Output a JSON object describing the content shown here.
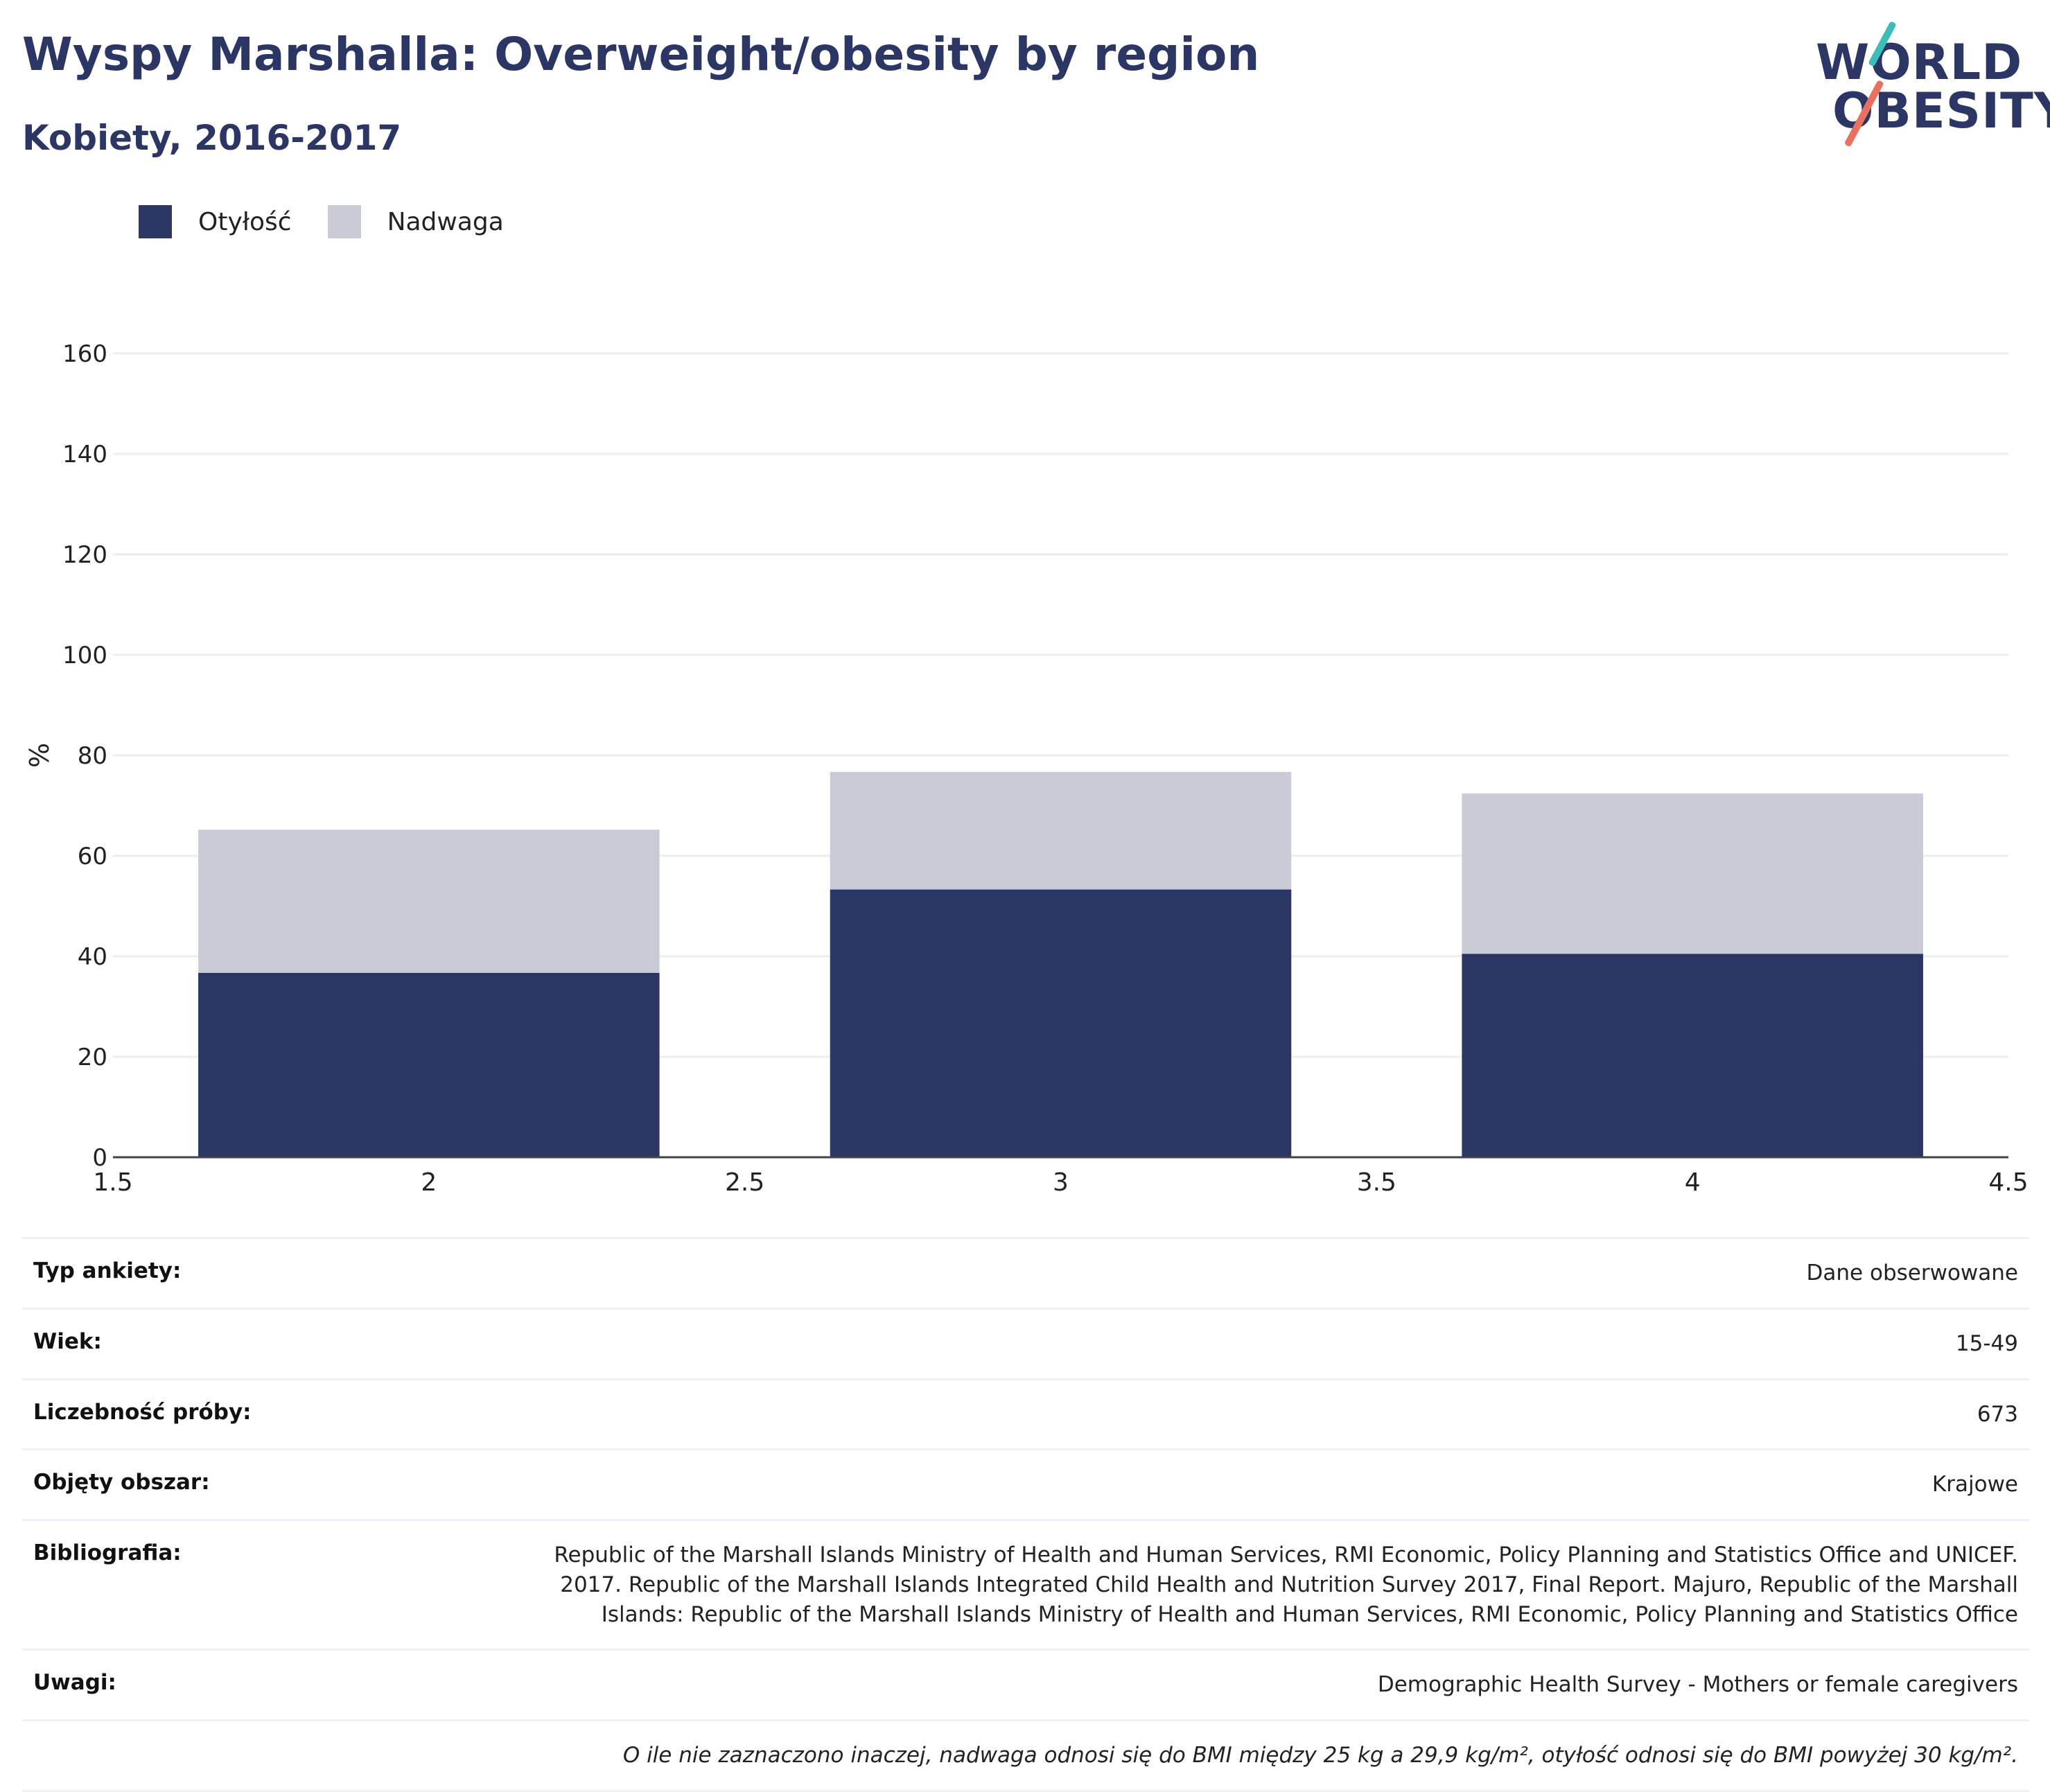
{
  "header": {
    "title": "Wyspy Marshalla: Overweight/obesity by region",
    "subtitle": "Kobiety, 2016-2017"
  },
  "logo": {
    "line1": "WORLD",
    "line2": "OBESITY"
  },
  "legend": [
    {
      "label": "Otyłość",
      "color": "#2a3663"
    },
    {
      "label": "Nadwaga",
      "color": "#c9cbd6"
    }
  ],
  "chart_data": {
    "type": "bar",
    "stacked": true,
    "x": [
      2,
      3,
      4
    ],
    "series": [
      {
        "name": "Otyłość",
        "color": "#2a3663",
        "values": [
          36.7,
          53.3,
          40.5
        ]
      },
      {
        "name": "Nadwaga",
        "color": "#c9cbd6",
        "values": [
          28.5,
          23.4,
          31.9
        ]
      }
    ],
    "xlim": [
      1.5,
      4.5
    ],
    "ylim": [
      0,
      160
    ],
    "xticks": [
      "1.5",
      "2",
      "2.5",
      "3",
      "3.5",
      "4",
      "4.5"
    ],
    "yticks": [
      "0",
      "20",
      "40",
      "60",
      "80",
      "100",
      "120",
      "140",
      "160"
    ],
    "xlabel": "",
    "ylabel": "%",
    "grid": true,
    "legend_position": "top-left"
  },
  "meta": {
    "rows": [
      {
        "label": "Typ ankiety:",
        "value": "Dane obserwowane"
      },
      {
        "label": "Wiek:",
        "value": "15-49"
      },
      {
        "label": "Liczebność próby:",
        "value": "673"
      },
      {
        "label": "Objęty obszar:",
        "value": "Krajowe"
      },
      {
        "label": "Bibliografia:",
        "value": "Republic of the Marshall Islands Ministry of Health and Human Services, RMI Economic, Policy Planning and Statistics Office and UNICEF. 2017. Republic of the Marshall Islands Integrated Child Health and Nutrition Survey 2017, Final Report. Majuro, Republic of the Marshall Islands: Republic of the Marshall Islands Ministry of Health and Human Services, RMI Economic, Policy Planning and Statistics Office"
      },
      {
        "label": "Uwagi:",
        "value": "Demographic Health Survey - Mothers or female caregivers"
      }
    ],
    "note": "O ile nie zaznaczono inaczej, nadwaga odnosi się do BMI między 25 kg a 29,9 kg/m², otyłość odnosi się do BMI powyżej 30 kg/m²."
  },
  "colors": {
    "title": "#2b3664",
    "logo_teal": "#3dbdb8",
    "logo_coral": "#e8715f"
  }
}
